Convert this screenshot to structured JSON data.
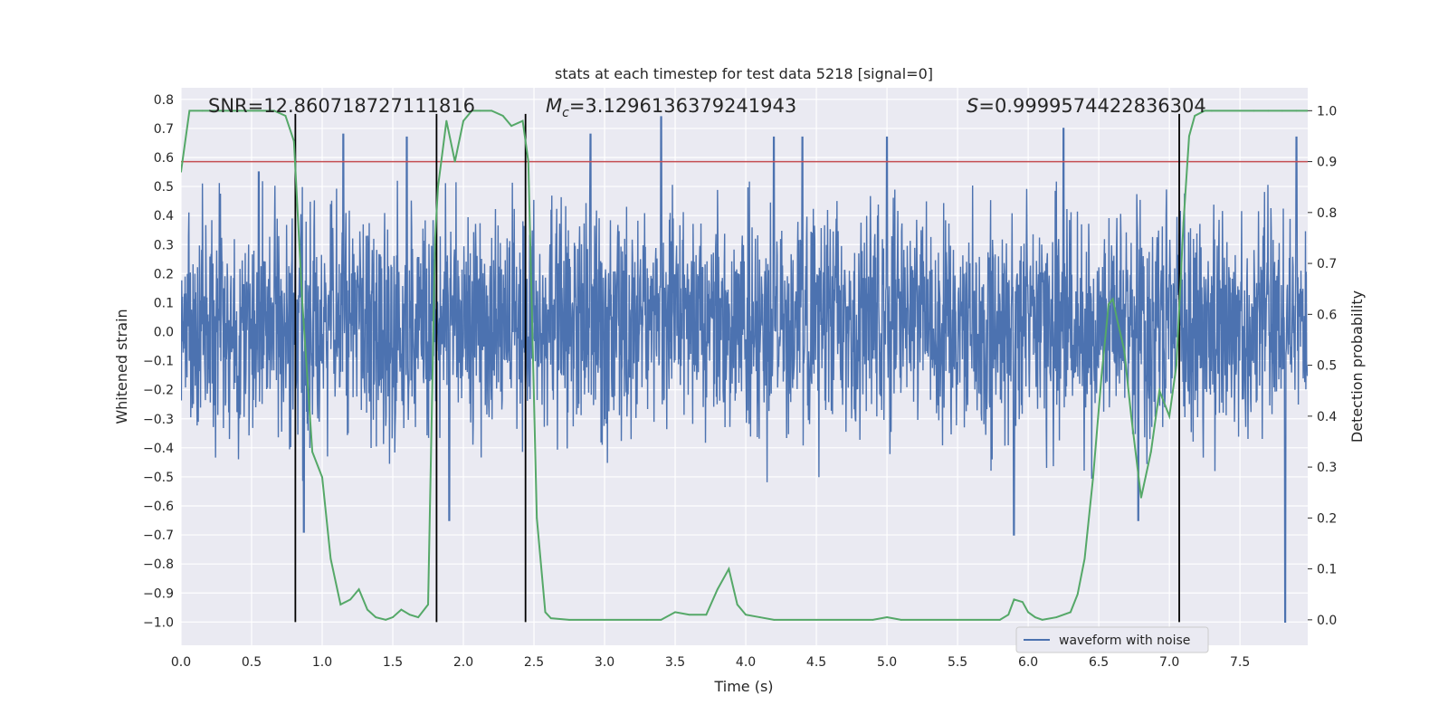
{
  "chart_data": {
    "type": "line",
    "title": "stats at each timestep for test data 5218 [signal=0]",
    "xlabel": "Time (s)",
    "ylabel_left": "Whitened strain",
    "ylabel_right": "Detection probability",
    "xlim": [
      0.0,
      7.98
    ],
    "ylim_left": [
      -1.08,
      0.84
    ],
    "ylim_right": [
      -0.05,
      1.045
    ],
    "xticks": [
      "0.0",
      "0.5",
      "1.0",
      "1.5",
      "2.0",
      "2.5",
      "3.0",
      "3.5",
      "4.0",
      "4.5",
      "5.0",
      "5.5",
      "6.0",
      "6.5",
      "7.0",
      "7.5"
    ],
    "xtick_values": [
      0,
      0.5,
      1,
      1.5,
      2,
      2.5,
      3,
      3.5,
      4,
      4.5,
      5,
      5.5,
      6,
      6.5,
      7,
      7.5
    ],
    "yticks_left": [
      "0.8",
      "0.7",
      "0.6",
      "0.5",
      "0.4",
      "0.3",
      "0.2",
      "0.1",
      "0.0",
      "−0.1",
      "−0.2",
      "−0.3",
      "−0.4",
      "−0.5",
      "−0.6",
      "−0.7",
      "−0.8",
      "−0.9",
      "−1.0"
    ],
    "ytick_values_left": [
      0.8,
      0.7,
      0.6,
      0.5,
      0.4,
      0.3,
      0.2,
      0.1,
      0.0,
      -0.1,
      -0.2,
      -0.3,
      -0.4,
      -0.5,
      -0.6,
      -0.7,
      -0.8,
      -0.9,
      -1.0
    ],
    "yticks_right": [
      "1.0",
      "0.9",
      "0.8",
      "0.7",
      "0.6",
      "0.5",
      "0.4",
      "0.3",
      "0.2",
      "0.1",
      "0.0"
    ],
    "ytick_values_right": [
      1.0,
      0.9,
      0.8,
      0.7,
      0.6,
      0.5,
      0.4,
      0.3,
      0.2,
      0.1,
      0.0
    ],
    "annotations": {
      "snr": "SNR=12.860718727111816",
      "mc_symbol": "M",
      "mc_sub": "c",
      "mc_value": "=3.1296136379241943",
      "s_symbol": "S",
      "s_value": "=0.9999574422836304"
    },
    "threshold": {
      "value": 0.9,
      "axis": "right",
      "color": "#c44e52"
    },
    "vertical_lines": [
      0.81,
      1.81,
      2.44,
      7.07
    ],
    "vertical_line_range_left": [
      -1.0,
      0.75
    ],
    "legend": {
      "label": "waveform with noise",
      "placement": "lower-right"
    },
    "series": [
      {
        "name": "waveform with noise",
        "axis": "left",
        "color": "#4c72b0",
        "envelope_typical": 0.35,
        "notable_peaks": [
          {
            "x": 0.55,
            "value": 0.55
          },
          {
            "x": 0.87,
            "value": -0.69
          },
          {
            "x": 1.15,
            "value": 0.68
          },
          {
            "x": 1.6,
            "value": 0.67
          },
          {
            "x": 1.9,
            "value": -0.65
          },
          {
            "x": 2.9,
            "value": 0.68
          },
          {
            "x": 3.4,
            "value": 0.74
          },
          {
            "x": 4.2,
            "value": 0.67
          },
          {
            "x": 4.4,
            "value": 0.67
          },
          {
            "x": 5.0,
            "value": 0.67
          },
          {
            "x": 5.9,
            "value": -0.7
          },
          {
            "x": 6.25,
            "value": 0.7
          },
          {
            "x": 6.78,
            "value": -0.65
          },
          {
            "x": 7.82,
            "value": -1.0
          },
          {
            "x": 7.9,
            "value": 0.67
          }
        ]
      },
      {
        "name": "detection probability",
        "axis": "right",
        "color": "#55a868",
        "x": [
          0.0,
          0.06,
          0.15,
          0.3,
          0.45,
          0.6,
          0.66,
          0.74,
          0.8,
          0.86,
          0.93,
          1.0,
          1.06,
          1.13,
          1.2,
          1.26,
          1.32,
          1.38,
          1.45,
          1.5,
          1.56,
          1.62,
          1.68,
          1.75,
          1.8,
          1.82,
          1.88,
          1.94,
          2.0,
          2.06,
          2.12,
          2.2,
          2.28,
          2.34,
          2.42,
          2.46,
          2.52,
          2.58,
          2.62,
          2.75,
          3.0,
          3.3,
          3.4,
          3.5,
          3.6,
          3.72,
          3.8,
          3.88,
          3.94,
          4.0,
          4.1,
          4.2,
          4.5,
          4.9,
          5.0,
          5.1,
          5.5,
          5.8,
          5.86,
          5.9,
          5.96,
          6.0,
          6.05,
          6.1,
          6.2,
          6.3,
          6.35,
          6.4,
          6.46,
          6.52,
          6.57,
          6.6,
          6.63,
          6.68,
          6.73,
          6.8,
          6.87,
          6.93,
          7.0,
          7.05,
          7.1,
          7.14,
          7.18,
          7.25,
          7.3,
          7.5,
          7.6,
          7.7,
          7.8,
          7.9,
          7.98
        ],
        "values": [
          0.88,
          1.0,
          1.0,
          1.0,
          1.0,
          1.0,
          1.0,
          0.99,
          0.94,
          0.62,
          0.33,
          0.28,
          0.12,
          0.03,
          0.04,
          0.06,
          0.02,
          0.005,
          0.0,
          0.005,
          0.02,
          0.01,
          0.005,
          0.03,
          0.75,
          0.85,
          0.98,
          0.9,
          0.98,
          1.0,
          1.0,
          1.0,
          0.99,
          0.97,
          0.98,
          0.9,
          0.2,
          0.015,
          0.003,
          0.0,
          0.0,
          0.0,
          0.0,
          0.015,
          0.01,
          0.01,
          0.06,
          0.1,
          0.03,
          0.01,
          0.005,
          0.0,
          0.0,
          0.0,
          0.005,
          0.0,
          0.0,
          0.0,
          0.01,
          0.04,
          0.035,
          0.015,
          0.005,
          0.0,
          0.005,
          0.015,
          0.05,
          0.12,
          0.28,
          0.48,
          0.62,
          0.63,
          0.59,
          0.53,
          0.4,
          0.24,
          0.33,
          0.45,
          0.4,
          0.5,
          0.78,
          0.95,
          0.99,
          1.0,
          1.0,
          1.0,
          1.0,
          1.0,
          1.0,
          1.0,
          1.0
        ]
      }
    ]
  }
}
